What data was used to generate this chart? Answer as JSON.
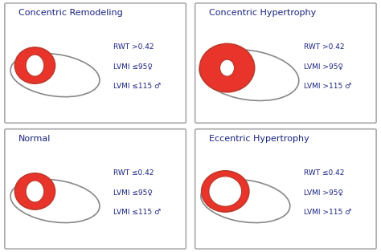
{
  "panels": [
    {
      "title": "Concentric Remodeling",
      "rwt": "RWT >0.42",
      "lvmi_f": "LVMI ≤95♀",
      "lvmi_m": "LVMI ≤115 ♂",
      "heart_type": "concentric_remodeling",
      "col": 0,
      "row": 0
    },
    {
      "title": "Concentric Hypertrophy",
      "rwt": "RWT >0.42",
      "lvmi_f": "LVMI >95♀",
      "lvmi_m": "LVMI >115 ♂",
      "heart_type": "concentric_hypertrophy",
      "col": 1,
      "row": 0
    },
    {
      "title": "Normal",
      "rwt": "RWT ≤0.42",
      "lvmi_f": "LVMI ≤95♀",
      "lvmi_m": "LVMI ≤115 ♂",
      "heart_type": "normal",
      "col": 0,
      "row": 1
    },
    {
      "title": "Eccentric Hypertrophy",
      "rwt": "RWT ≤0.42",
      "lvmi_f": "LVMI >95♀",
      "lvmi_m": "LVMI >115 ♂",
      "heart_type": "eccentric_hypertrophy",
      "col": 1,
      "row": 1
    }
  ],
  "bg_color": "#ffffff",
  "border_color": "#aaaaaa",
  "title_color": "#1a237e",
  "text_color": "#1a237e",
  "red_fill": "#e8342a",
  "red_dark": "#c0392b",
  "white_inner": "#ffffff",
  "outer_ellipse_color": "#888888"
}
